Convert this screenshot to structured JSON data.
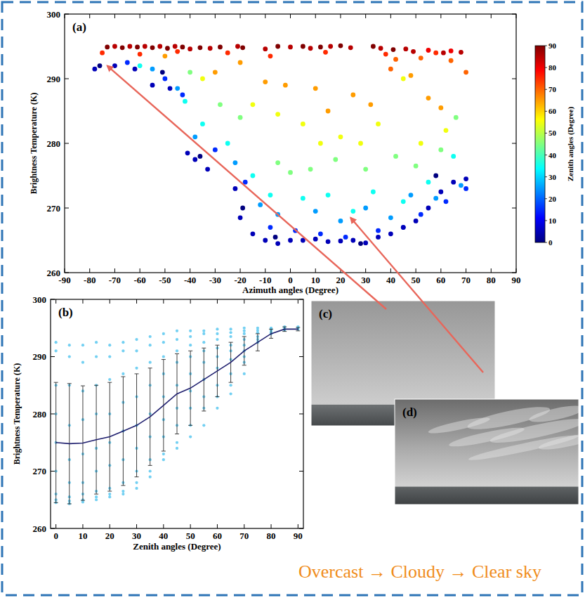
{
  "chart_data": [
    {
      "type": "scatter",
      "title": "(a)",
      "x_label": "Azimuth angles (Degree)",
      "y_label": "Brightness Temperature (K)",
      "xlim": [
        -90,
        90
      ],
      "xticks": [
        -90,
        -80,
        -70,
        -60,
        -50,
        -40,
        -30,
        -20,
        -10,
        0,
        10,
        20,
        30,
        40,
        50,
        60,
        70,
        80,
        90
      ],
      "ylim": [
        260,
        300
      ],
      "yticks": [
        260,
        270,
        280,
        290,
        300
      ],
      "grid": false,
      "series": [
        {
          "marker": "circle",
          "x": [
            -73,
            -70,
            -67,
            -64,
            -61,
            -58,
            -55,
            -52,
            -49,
            -46,
            -43,
            -40,
            -36,
            -32,
            -28,
            -21,
            -19,
            -10,
            -5,
            0,
            5,
            8,
            12,
            16,
            20,
            24,
            33,
            36,
            41,
            46,
            49,
            55,
            61,
            64,
            68,
            -75,
            -60,
            -45,
            -25,
            -8,
            14,
            38,
            42,
            52,
            58,
            64,
            70,
            40,
            48,
            -50,
            -20,
            10,
            15,
            25,
            32,
            -2,
            -10,
            -30,
            55,
            60,
            -5,
            5,
            12,
            20,
            28,
            35,
            -15,
            -35,
            45,
            62,
            52,
            -40,
            -28,
            -20,
            -5,
            0,
            8,
            18,
            30,
            42,
            50,
            60,
            66,
            -42,
            -35,
            -25,
            -15,
            -8,
            5,
            15,
            25,
            33,
            45,
            55,
            65,
            -60,
            -55,
            -45,
            -38,
            -22,
            -12,
            -5,
            10,
            20,
            30,
            40,
            48,
            58,
            68,
            -65,
            -50,
            -43,
            -30,
            -18,
            -8,
            2,
            12,
            22,
            35,
            45,
            52,
            62,
            70,
            -78,
            -70,
            -62,
            -55,
            -48,
            -41,
            -38,
            -33,
            -22,
            -20,
            -15,
            -10,
            -5,
            0,
            5,
            10,
            15,
            20,
            25,
            30,
            35,
            40,
            45,
            50,
            55,
            60,
            65,
            70,
            -76,
            -51,
            -36,
            -19,
            -6,
            28,
            58
          ],
          "values": [
            294.9,
            295,
            294.8,
            295,
            294.9,
            295,
            294.8,
            295,
            294.7,
            295,
            294.9,
            294.6,
            294.8,
            294.7,
            294.9,
            295,
            294.8,
            294.6,
            295,
            294.9,
            295,
            294.7,
            294.9,
            295,
            295.1,
            294.8,
            295,
            294.7,
            294.5,
            294.6,
            294.2,
            294.4,
            294,
            294.3,
            294.1,
            294,
            293.8,
            294.2,
            294,
            293.5,
            294.1,
            293.8,
            293,
            293.2,
            294,
            292.8,
            291,
            291.5,
            290.5,
            293.5,
            292.5,
            288.5,
            285,
            287.5,
            286,
            289,
            289.5,
            291,
            287,
            285.5,
            284.5,
            283,
            280,
            281,
            280,
            283,
            286,
            290,
            290,
            282,
            280,
            291,
            286,
            284,
            277,
            275.5,
            276,
            277.5,
            276,
            278,
            276.5,
            279,
            284,
            286.5,
            283,
            280,
            275,
            272,
            271.5,
            272,
            269.5,
            272.5,
            271,
            274,
            278,
            292,
            291.5,
            288.5,
            281,
            277,
            270.5,
            269,
            269.5,
            268,
            270,
            268.5,
            272,
            271.5,
            273.5,
            292.5,
            290,
            287.5,
            279,
            274,
            267,
            266.5,
            266,
            265.5,
            266.5,
            267,
            269,
            271,
            273,
            291.5,
            292,
            291.5,
            289,
            288.5,
            278.5,
            277.5,
            276,
            273,
            268.5,
            266,
            265,
            264.5,
            265,
            265,
            265.2,
            264.8,
            264.9,
            265,
            264.6,
            265.5,
            266,
            267,
            268,
            270,
            272.5,
            274,
            274.5,
            292,
            291,
            278,
            270,
            265.5,
            264.5,
            275
          ],
          "zenith": [
            90,
            85,
            90,
            85,
            90,
            85,
            90,
            85,
            90,
            85,
            90,
            85,
            90,
            85,
            90,
            85,
            90,
            85,
            90,
            85,
            90,
            85,
            90,
            85,
            90,
            85,
            90,
            85,
            90,
            85,
            85,
            80,
            85,
            80,
            85,
            75,
            75,
            75,
            75,
            75,
            75,
            75,
            70,
            70,
            75,
            70,
            70,
            70,
            65,
            65,
            65,
            65,
            65,
            65,
            65,
            65,
            65,
            65,
            65,
            65,
            55,
            55,
            55,
            55,
            55,
            55,
            55,
            55,
            55,
            55,
            55,
            45,
            45,
            45,
            45,
            45,
            45,
            45,
            45,
            45,
            45,
            45,
            45,
            35,
            35,
            35,
            35,
            35,
            35,
            35,
            35,
            35,
            35,
            35,
            35,
            35,
            25,
            25,
            25,
            25,
            25,
            25,
            25,
            25,
            25,
            25,
            25,
            25,
            25,
            15,
            15,
            15,
            15,
            15,
            15,
            15,
            15,
            15,
            15,
            15,
            15,
            15,
            15,
            5,
            5,
            5,
            5,
            5,
            5,
            5,
            5,
            5,
            5,
            5,
            5,
            5,
            5,
            5,
            5,
            5,
            5,
            5,
            5,
            5,
            5,
            5,
            5,
            5,
            5,
            5,
            5,
            0,
            0,
            0,
            0,
            0,
            0,
            0
          ]
        }
      ],
      "colorbar": {
        "label": "Zenith angles (Degree)",
        "range": [
          0,
          90
        ],
        "ticks": [
          0,
          10,
          20,
          30,
          40,
          50,
          60,
          70,
          80,
          90
        ]
      }
    },
    {
      "type": "scatter",
      "title": "(b)",
      "x_label": "Zenith angles (Degree)",
      "y_label": "Brightness Temperature (K)",
      "xlim": [
        -2,
        92
      ],
      "xticks": [
        0,
        10,
        20,
        30,
        40,
        50,
        60,
        70,
        80,
        90
      ],
      "ylim": [
        260,
        300
      ],
      "yticks": [
        260,
        270,
        280,
        290,
        300
      ],
      "grid": false,
      "series": [
        {
          "type": "scatter",
          "color": "#5ac8f0",
          "marker": "circle",
          "x": [
            0,
            0,
            0,
            0,
            0,
            0,
            0,
            0,
            0,
            5,
            5,
            5,
            5,
            5,
            5,
            5,
            5,
            5,
            10,
            10,
            10,
            10,
            10,
            10,
            10,
            10,
            10,
            15,
            15,
            15,
            15,
            15,
            15,
            15,
            15,
            15,
            20,
            20,
            20,
            20,
            20,
            20,
            20,
            20,
            20,
            25,
            25,
            25,
            25,
            25,
            25,
            25,
            25,
            25,
            30,
            30,
            30,
            30,
            30,
            30,
            30,
            30,
            30,
            35,
            35,
            35,
            35,
            35,
            35,
            35,
            35,
            35,
            40,
            40,
            40,
            40,
            40,
            40,
            40,
            40,
            40,
            45,
            45,
            45,
            45,
            45,
            45,
            45,
            45,
            45,
            50,
            50,
            50,
            50,
            50,
            50,
            50,
            50,
            50,
            55,
            55,
            55,
            55,
            55,
            55,
            55,
            55,
            55,
            60,
            60,
            60,
            60,
            60,
            60,
            60,
            60,
            60,
            65,
            65,
            65,
            65,
            65,
            65,
            65,
            65,
            65,
            70,
            70,
            70,
            70,
            70,
            70,
            70,
            70,
            70,
            75,
            75,
            75,
            75,
            75,
            75,
            80,
            80,
            80,
            80,
            80,
            85,
            85,
            85,
            85,
            90,
            90,
            90
          ],
          "values": [
            292.5,
            291,
            285,
            280,
            275,
            270,
            266,
            265,
            264.5,
            292,
            290,
            285,
            278,
            272,
            268,
            265.5,
            264.8,
            264.3,
            292,
            289,
            284,
            279,
            273,
            268,
            266,
            265,
            264.6,
            292.5,
            290,
            285,
            280,
            274,
            270,
            266.5,
            265.5,
            265,
            292,
            290,
            286,
            280,
            275,
            271,
            267,
            266,
            265.5,
            292.5,
            291,
            287,
            282,
            277,
            272,
            268,
            266.5,
            266,
            293,
            291,
            288,
            283,
            278,
            274,
            270,
            268,
            267,
            293.5,
            292,
            289,
            285,
            280,
            276,
            272,
            270,
            269,
            294,
            292.5,
            290,
            287,
            283,
            279,
            276,
            273,
            272,
            294.5,
            293,
            291,
            289,
            285,
            281,
            278,
            275,
            274,
            294.5,
            293.5,
            292,
            290,
            287,
            284,
            281,
            278,
            276,
            294.5,
            294,
            292.5,
            291,
            289,
            286,
            283,
            281,
            278,
            294.8,
            294,
            293,
            291.5,
            290,
            288,
            285,
            283,
            281,
            294.8,
            294.2,
            293.5,
            292,
            291,
            289.5,
            287,
            285,
            283.5,
            295,
            294.5,
            294,
            293,
            292,
            291,
            290,
            289,
            287,
            295,
            294.6,
            294.2,
            293.5,
            293,
            292.5,
            295,
            294.8,
            294.5,
            294.2,
            294,
            295.2,
            295,
            294.8,
            294.6,
            295.2,
            295,
            294.8
          ]
        },
        {
          "type": "line",
          "color": "#1f1f6e",
          "marker": "none",
          "line_style": "solid",
          "x": [
            0,
            5,
            10,
            15,
            20,
            25,
            30,
            35,
            40,
            45,
            50,
            55,
            60,
            65,
            70,
            75,
            80,
            85,
            90
          ],
          "values": [
            275,
            274.8,
            274.9,
            275.5,
            276,
            277,
            278,
            279.5,
            281.5,
            283.5,
            284.5,
            286,
            287.5,
            289,
            291,
            292.5,
            294,
            294.8,
            294.8
          ],
          "errors": [
            10.5,
            10.5,
            10,
            9.5,
            9.5,
            9.5,
            9,
            8.5,
            8,
            7,
            6.5,
            5.5,
            4.5,
            3.5,
            2.5,
            1.5,
            0.8,
            0.4,
            0.3
          ]
        }
      ]
    }
  ],
  "photos": [
    {
      "label": "(c)",
      "target_x": -73,
      "target_y": 292
    },
    {
      "label": "(d)",
      "target_x": 24,
      "target_y": 268.5
    }
  ],
  "caption": "Overcast → Cloudy → Clear sky"
}
